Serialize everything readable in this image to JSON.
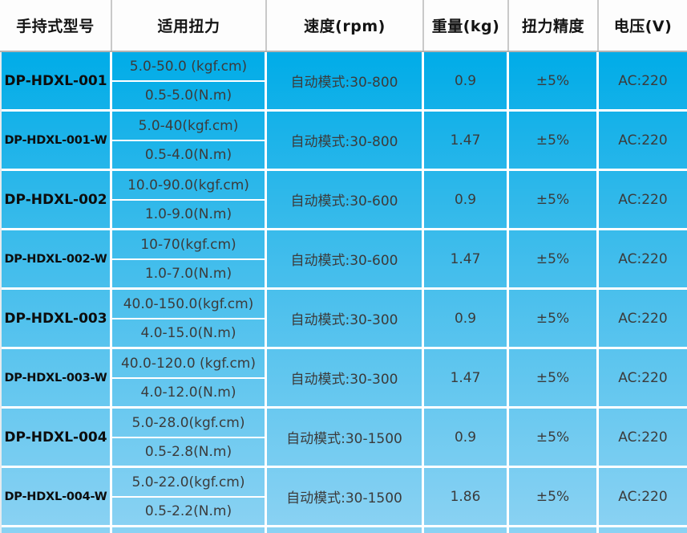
{
  "table": {
    "headers": [
      "手持式型号",
      "适用扭力",
      "速度(rpm)",
      "重量(kg)",
      "扭力精度",
      "电压(V)"
    ],
    "rows": [
      {
        "model": "DP-HDXL-001",
        "torque_kgf": "5.0-50.0 (kgf.cm)",
        "torque_nm": "0.5-5.0(N.m)",
        "speed": "自动模式:30-800",
        "weight": "0.9",
        "precision": "±5%",
        "voltage": "AC:220"
      },
      {
        "model": "DP-HDXL-001-W",
        "torque_kgf": "5.0-40(kgf.cm)",
        "torque_nm": "0.5-4.0(N.m)",
        "speed": "自动模式:30-800",
        "weight": "1.47",
        "precision": "±5%",
        "voltage": "AC:220"
      },
      {
        "model": "DP-HDXL-002",
        "torque_kgf": "10.0-90.0(kgf.cm)",
        "torque_nm": "1.0-9.0(N.m)",
        "speed": "自动模式:30-600",
        "weight": "0.9",
        "precision": "±5%",
        "voltage": "AC:220"
      },
      {
        "model": "DP-HDXL-002-W",
        "torque_kgf": "10-70(kgf.cm)",
        "torque_nm": "1.0-7.0(N.m)",
        "speed": "自动模式:30-600",
        "weight": "1.47",
        "precision": "±5%",
        "voltage": "AC:220"
      },
      {
        "model": "DP-HDXL-003",
        "torque_kgf": "40.0-150.0(kgf.cm)",
        "torque_nm": "4.0-15.0(N.m)",
        "speed": "自动模式:30-300",
        "weight": "0.9",
        "precision": "±5%",
        "voltage": "AC:220"
      },
      {
        "model": "DP-HDXL-003-W",
        "torque_kgf": "40.0-120.0 (kgf.cm)",
        "torque_nm": "4.0-12.0(N.m)",
        "speed": "自动模式:30-300",
        "weight": "1.47",
        "precision": "±5%",
        "voltage": "AC:220"
      },
      {
        "model": "DP-HDXL-004",
        "torque_kgf": "5.0-28.0(kgf.cm)",
        "torque_nm": "0.5-2.8(N.m)",
        "speed": "自动模式:30-1500",
        "weight": "0.9",
        "precision": "±5%",
        "voltage": "AC:220"
      },
      {
        "model": "DP-HDXL-004-W",
        "torque_kgf": "5.0-22.0(kgf.cm)",
        "torque_nm": "0.5-2.2(N.m)",
        "speed": "自动模式:30-1500",
        "weight": "1.86",
        "precision": "±5%",
        "voltage": "AC:220"
      }
    ]
  },
  "colors": {
    "body_gradient_top": "#00ace8",
    "body_gradient_bottom": "#8bd2f3",
    "grid_line": "#ffffff",
    "header_separator": "#c9c9c9",
    "header_bottom_line": "#b2b2b2",
    "body_text": "#3b3b3b",
    "model_text": "#0d0d0d"
  }
}
